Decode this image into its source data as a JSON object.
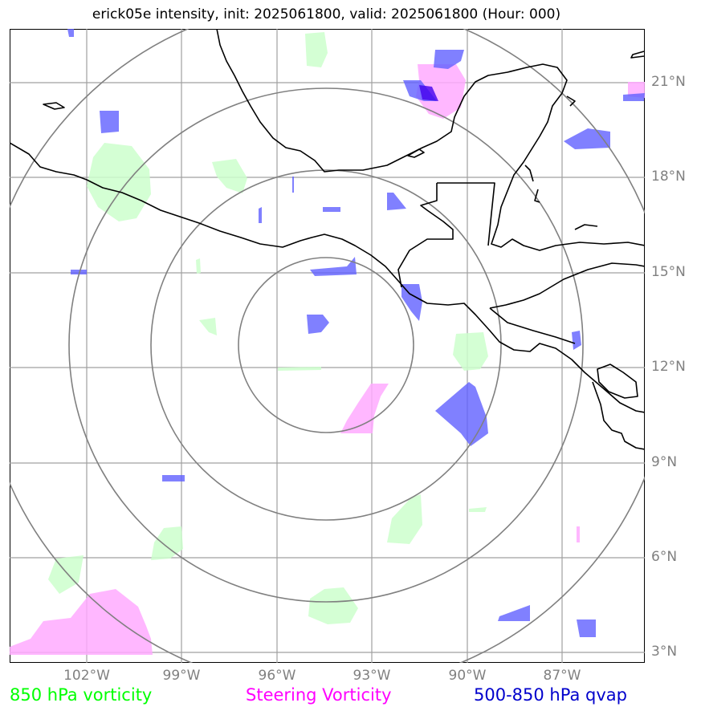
{
  "title": "erick05e intensity, init: 2025061800, valid: 2025061800 (Hour: 000)",
  "map": {
    "lat_labels": [
      "21°N",
      "18°N",
      "15°N",
      "12°N",
      "9°N",
      "6°N",
      "3°N"
    ],
    "lon_labels": [
      "102°W",
      "99°W",
      "96°W",
      "93°W",
      "90°W",
      "87°W"
    ],
    "gridlines": true,
    "range_rings": 4
  },
  "legend": [
    {
      "label": "850 hPa vorticity",
      "color": "#00ff00"
    },
    {
      "label": "Steering Vorticity",
      "color": "#ff00ff"
    },
    {
      "label": "500-850 hPa qvap",
      "color": "#0000cc"
    }
  ],
  "colors": {
    "vorticity_850": "#ccffcc",
    "steering_vorticity": "#ffb3ff",
    "qvap": "#7070ff",
    "rings": "#808080",
    "grid": "#a0a0a0",
    "coastline": "#000000"
  }
}
